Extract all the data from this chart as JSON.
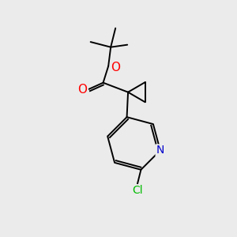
{
  "background_color": "#ebebeb",
  "bond_color": "#000000",
  "atom_colors": {
    "O": "#ff0000",
    "N": "#0000cc",
    "Cl": "#00bb00",
    "C": "#000000"
  },
  "line_width": 1.4,
  "font_size": 10,
  "fig_size": [
    3.0,
    3.0
  ],
  "dpi": 100
}
